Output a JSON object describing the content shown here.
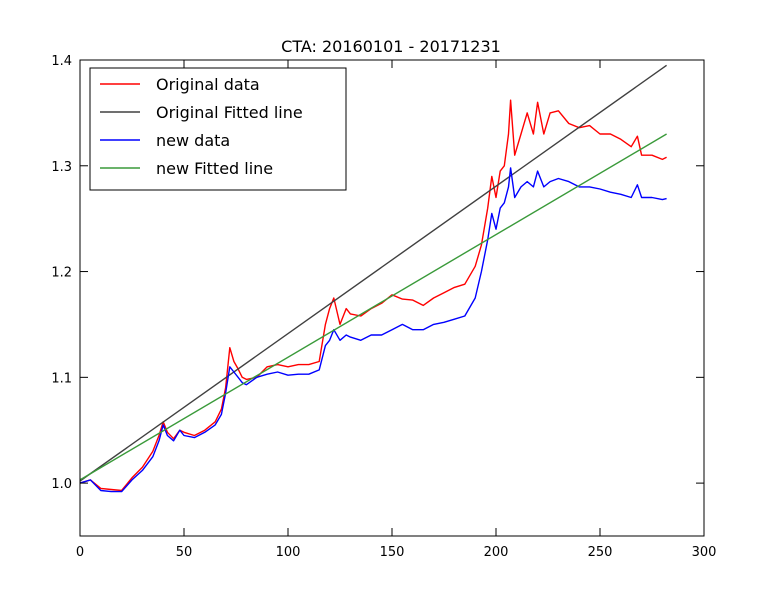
{
  "chart_data": {
    "type": "line",
    "title": "CTA: 20160101 - 20171231",
    "xlabel": "",
    "ylabel": "",
    "xlim": [
      0,
      300
    ],
    "ylim": [
      0.95,
      1.4
    ],
    "xticks": [
      0,
      50,
      100,
      150,
      200,
      250,
      300
    ],
    "yticks": [
      1.0,
      1.1,
      1.2,
      1.3,
      1.4
    ],
    "xtick_labels": [
      "0",
      "50",
      "100",
      "150",
      "200",
      "250",
      "300"
    ],
    "ytick_labels": [
      "1.0",
      "1.1",
      "1.2",
      "1.3",
      "1.4"
    ],
    "grid": false,
    "legend_position": "top-left",
    "series": [
      {
        "name": "Original data",
        "color": "#ff0000",
        "x": [
          0,
          5,
          10,
          15,
          20,
          25,
          30,
          35,
          38,
          40,
          42,
          45,
          48,
          50,
          55,
          60,
          65,
          68,
          70,
          72,
          74,
          76,
          78,
          80,
          85,
          90,
          95,
          100,
          105,
          110,
          115,
          118,
          120,
          122,
          125,
          128,
          130,
          135,
          140,
          145,
          150,
          155,
          160,
          165,
          170,
          175,
          180,
          185,
          190,
          193,
          196,
          198,
          200,
          202,
          204,
          206,
          207,
          209,
          212,
          215,
          218,
          220,
          223,
          226,
          230,
          235,
          240,
          245,
          250,
          255,
          260,
          265,
          268,
          270,
          275,
          280,
          282
        ],
        "y": [
          1.0,
          1.003,
          0.995,
          0.994,
          0.993,
          1.005,
          1.015,
          1.03,
          1.045,
          1.058,
          1.048,
          1.042,
          1.05,
          1.048,
          1.045,
          1.05,
          1.058,
          1.07,
          1.09,
          1.128,
          1.115,
          1.108,
          1.1,
          1.098,
          1.1,
          1.11,
          1.112,
          1.11,
          1.112,
          1.112,
          1.115,
          1.15,
          1.165,
          1.175,
          1.15,
          1.165,
          1.16,
          1.158,
          1.165,
          1.17,
          1.178,
          1.174,
          1.173,
          1.168,
          1.175,
          1.18,
          1.185,
          1.188,
          1.205,
          1.225,
          1.26,
          1.29,
          1.27,
          1.295,
          1.3,
          1.33,
          1.362,
          1.31,
          1.33,
          1.35,
          1.33,
          1.36,
          1.33,
          1.35,
          1.352,
          1.34,
          1.336,
          1.338,
          1.33,
          1.33,
          1.325,
          1.318,
          1.328,
          1.31,
          1.31,
          1.306,
          1.308
        ]
      },
      {
        "name": "Original Fitted line",
        "color": "#404040",
        "x": [
          0,
          282
        ],
        "y": [
          1.002,
          1.395
        ]
      },
      {
        "name": "new data",
        "color": "#0000ff",
        "x": [
          0,
          5,
          10,
          15,
          20,
          25,
          30,
          35,
          38,
          40,
          42,
          45,
          48,
          50,
          55,
          60,
          65,
          68,
          70,
          72,
          74,
          76,
          78,
          80,
          85,
          90,
          95,
          100,
          105,
          110,
          115,
          118,
          120,
          122,
          125,
          128,
          130,
          135,
          140,
          145,
          150,
          155,
          160,
          165,
          170,
          175,
          180,
          185,
          190,
          193,
          196,
          198,
          200,
          202,
          204,
          206,
          207,
          209,
          212,
          215,
          218,
          220,
          223,
          226,
          230,
          235,
          240,
          245,
          250,
          255,
          260,
          265,
          268,
          270,
          275,
          280,
          282
        ],
        "y": [
          1.0,
          1.003,
          0.993,
          0.992,
          0.992,
          1.003,
          1.012,
          1.025,
          1.04,
          1.055,
          1.045,
          1.04,
          1.05,
          1.045,
          1.043,
          1.048,
          1.055,
          1.065,
          1.085,
          1.11,
          1.105,
          1.1,
          1.095,
          1.093,
          1.1,
          1.103,
          1.105,
          1.102,
          1.103,
          1.103,
          1.107,
          1.13,
          1.135,
          1.145,
          1.135,
          1.14,
          1.138,
          1.135,
          1.14,
          1.14,
          1.145,
          1.15,
          1.145,
          1.145,
          1.15,
          1.152,
          1.155,
          1.158,
          1.175,
          1.2,
          1.23,
          1.255,
          1.24,
          1.26,
          1.265,
          1.28,
          1.298,
          1.27,
          1.28,
          1.285,
          1.28,
          1.295,
          1.28,
          1.285,
          1.288,
          1.285,
          1.28,
          1.28,
          1.278,
          1.275,
          1.273,
          1.27,
          1.282,
          1.27,
          1.27,
          1.268,
          1.269
        ]
      },
      {
        "name": "new Fitted line",
        "color": "#3a9a3a",
        "x": [
          0,
          282
        ],
        "y": [
          1.003,
          1.33
        ]
      }
    ]
  }
}
